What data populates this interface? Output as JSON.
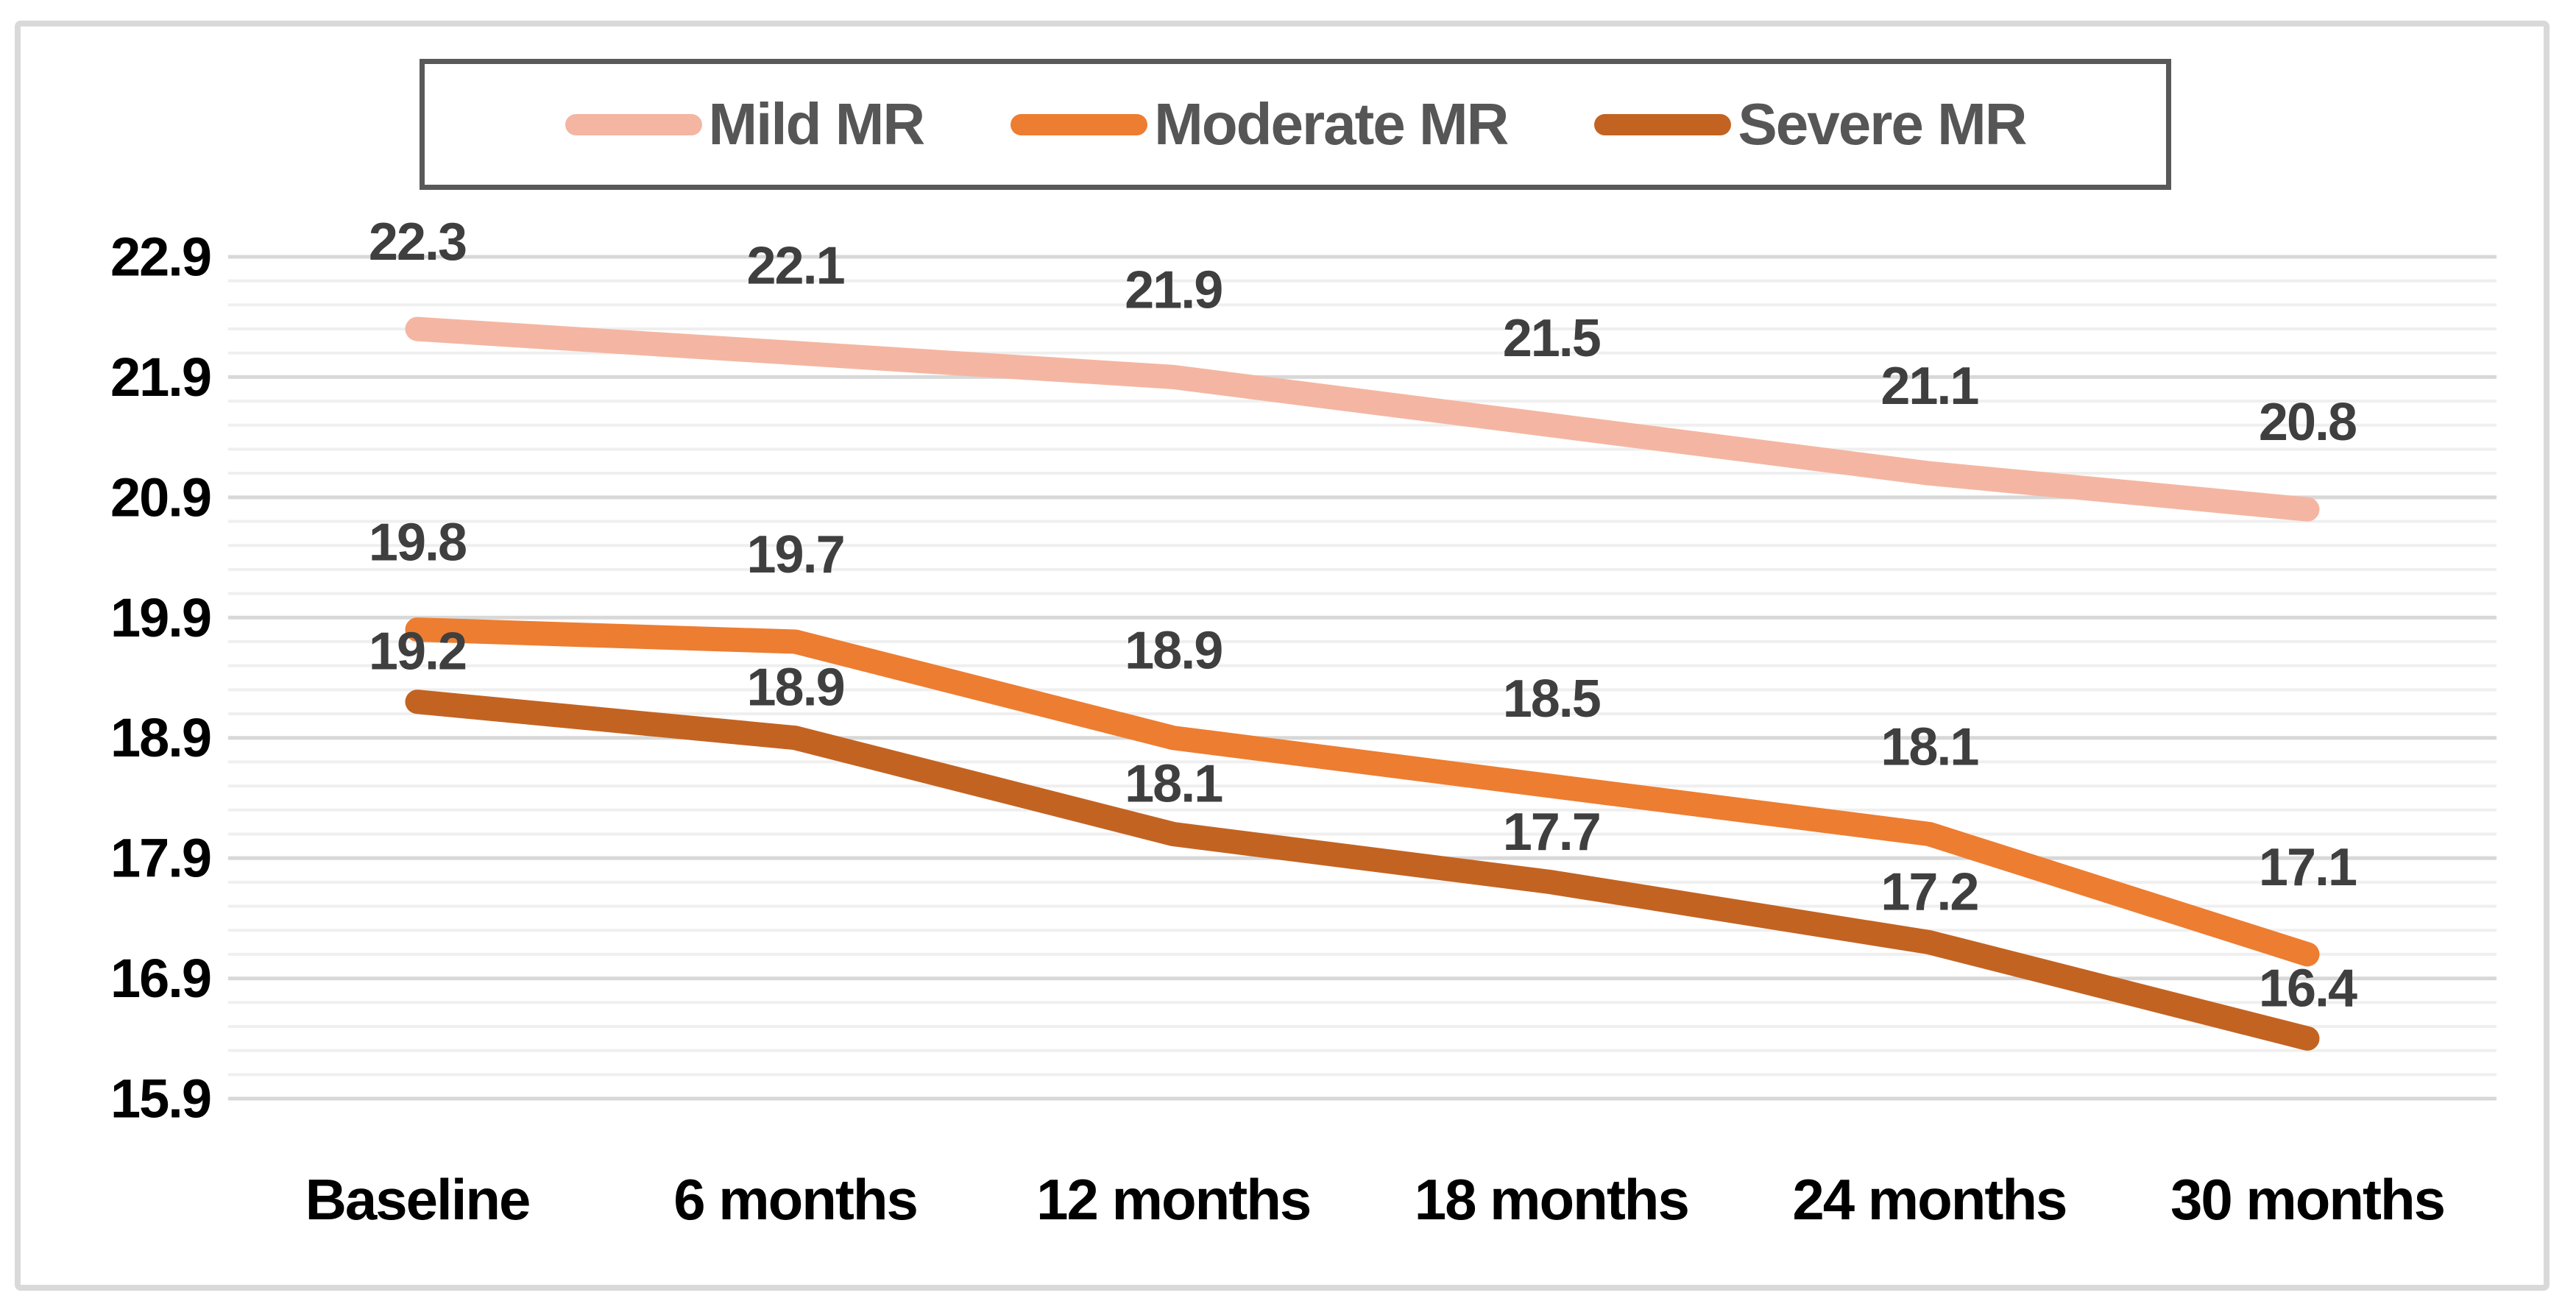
{
  "chart_data": {
    "type": "line",
    "title": "",
    "categories": [
      "Baseline",
      "6 months",
      "12 months",
      "18 months",
      "24 months",
      "30 months"
    ],
    "series": [
      {
        "name": "Mild MR",
        "color": "#F4B6A2",
        "values": [
          22.3,
          22.1,
          21.9,
          21.5,
          21.1,
          20.8
        ],
        "data_labels": [
          "22.3",
          "22.1",
          "21.9",
          "21.5",
          "21.1",
          "20.8"
        ]
      },
      {
        "name": "Moderate MR",
        "color": "#ED7D31",
        "values": [
          19.8,
          19.7,
          18.9,
          18.5,
          18.1,
          17.1
        ],
        "data_labels": [
          "19.8",
          "19.7",
          "18.9",
          "18.5",
          "18.1",
          "17.1"
        ]
      },
      {
        "name": "Severe MR",
        "color": "#C36322",
        "values": [
          19.2,
          18.9,
          18.1,
          17.7,
          17.2,
          16.4
        ],
        "data_labels": [
          "19.2",
          "18.9",
          "18.1",
          "17.7",
          "17.2",
          "16.4"
        ]
      }
    ],
    "y_axis": {
      "min": 15.9,
      "max": 22.9,
      "major_unit": 1.0,
      "minor_unit": 0.2,
      "tick_labels": [
        "22.9",
        "21.9",
        "20.9",
        "19.9",
        "18.9",
        "17.9",
        "16.9",
        "15.9"
      ]
    },
    "x_axis": {
      "tick_labels": [
        "Baseline",
        "6 months",
        "12 months",
        "18 months",
        "24 months",
        "30 months"
      ]
    },
    "legend_position": "top",
    "grid": {
      "major": true,
      "minor": true
    }
  },
  "styles": {
    "frame_border": "#d9d9d9",
    "legend_border": "#595959",
    "legend_text": "#565656",
    "axis_label_color": "#000000",
    "data_label_color": "#3f3f3f",
    "grid_major_color": "#d8d8d8",
    "grid_minor_color": "#efefef",
    "background": "#ffffff"
  }
}
